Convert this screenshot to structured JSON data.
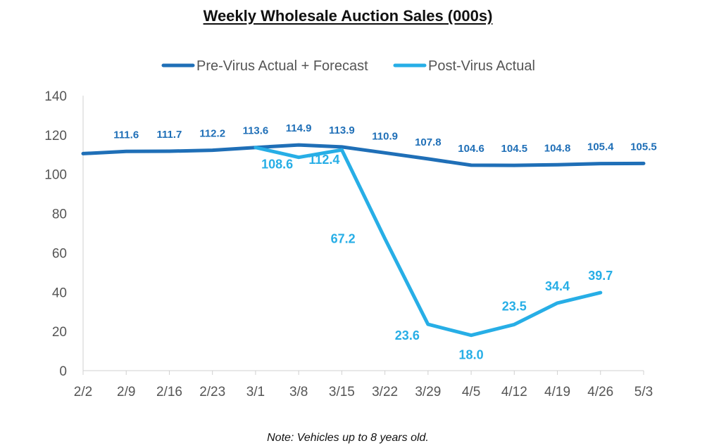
{
  "chart_data": {
    "type": "line",
    "title": "Weekly Wholesale Auction Sales (000s)",
    "note": "Note:  Vehicles up to 8 years old.",
    "categories": [
      "2/2",
      "2/9",
      "2/16",
      "2/23",
      "3/1",
      "3/8",
      "3/15",
      "3/22",
      "3/29",
      "4/5",
      "4/12",
      "4/19",
      "4/26",
      "5/3"
    ],
    "ylim": [
      0,
      140
    ],
    "yticks": [
      0,
      20,
      40,
      60,
      80,
      100,
      120,
      140
    ],
    "xlabel": "",
    "ylabel": "",
    "grid": false,
    "legend_position": "top-center",
    "series": [
      {
        "name": "Pre-Virus Actual + Forecast",
        "color": "#1f6fb7",
        "values": [
          110.5,
          111.6,
          111.7,
          112.2,
          113.6,
          114.9,
          113.9,
          110.9,
          107.8,
          104.6,
          104.5,
          104.8,
          105.4,
          105.5
        ],
        "labels": [
          "",
          "111.6",
          "111.7",
          "112.2",
          "113.6",
          "114.9",
          "113.9",
          "110.9",
          "107.8",
          "104.6",
          "104.5",
          "104.8",
          "105.4",
          "105.5"
        ]
      },
      {
        "name": "Post-Virus Actual",
        "color": "#27aee6",
        "values": [
          null,
          null,
          null,
          null,
          113.6,
          108.6,
          112.4,
          67.2,
          23.6,
          18.0,
          23.5,
          34.4,
          39.7,
          null
        ],
        "labels": [
          "",
          "",
          "",
          "",
          "",
          "108.6",
          "112.4",
          "67.2",
          "23.6",
          "18.0",
          "23.5",
          "34.4",
          "39.7",
          ""
        ]
      }
    ]
  }
}
